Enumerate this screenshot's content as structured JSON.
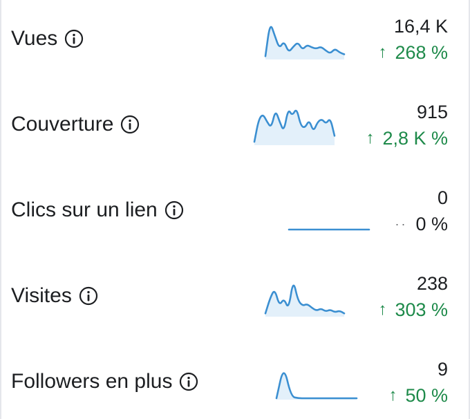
{
  "colors": {
    "positive": "#1e8a4a",
    "line": "#3b8fd1",
    "fill": "#e3f0fa",
    "text": "#1c1e21"
  },
  "metrics": [
    {
      "id": "vues",
      "label": "Vues",
      "info_icon": "info-circle-icon",
      "value": "16,4 K",
      "change_arrow": "↑",
      "change": "268 %",
      "trend": "up",
      "sparkline": [
        5,
        95,
        60,
        25,
        45,
        15,
        30,
        42,
        22,
        35,
        28,
        25,
        30,
        20,
        12,
        25,
        15,
        10
      ]
    },
    {
      "id": "couverture",
      "label": "Couverture",
      "info_icon": "info-circle-icon",
      "value": "915",
      "change_arrow": "↑",
      "change": "2,8 K %",
      "trend": "up",
      "sparkline": [
        5,
        60,
        75,
        55,
        40,
        85,
        55,
        30,
        88,
        70,
        90,
        45,
        40,
        60,
        30,
        55,
        62,
        50,
        65,
        20
      ]
    },
    {
      "id": "clics",
      "label": "Clics sur un lien",
      "info_icon": "info-circle-icon",
      "value": "0",
      "change_arrow": "··",
      "change": "0 %",
      "trend": "flat",
      "sparkline": [
        0,
        0,
        0,
        0,
        0,
        0,
        0,
        0,
        0,
        0
      ]
    },
    {
      "id": "visites",
      "label": "Visites",
      "info_icon": "info-circle-icon",
      "value": "238",
      "change_arrow": "↑",
      "change": "303 %",
      "trend": "up",
      "sparkline": [
        5,
        45,
        70,
        25,
        45,
        15,
        95,
        40,
        25,
        30,
        20,
        12,
        18,
        10,
        15,
        8,
        12,
        5
      ]
    },
    {
      "id": "followers",
      "label": "Followers en plus",
      "info_icon": "info-circle-icon",
      "value": "9",
      "change_arrow": "↑",
      "change": "50 %",
      "trend": "up",
      "sparkline": [
        0,
        100,
        5,
        0,
        0,
        0,
        0,
        0,
        0,
        0,
        0,
        0
      ]
    }
  ]
}
